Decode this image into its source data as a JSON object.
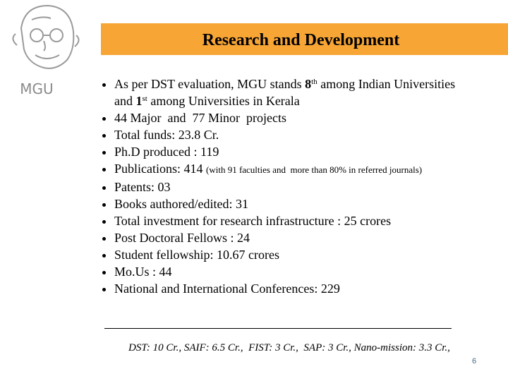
{
  "logo": {
    "label": "MGU"
  },
  "header": {
    "title": "Research and Development"
  },
  "bullets": [
    {
      "segments": [
        "As per DST evaluation, MGU stands",
        "8",
        "th",
        "among Indian Universities",
        "and",
        "1",
        "st",
        "among Universities in Kerala"
      ]
    },
    {
      "text": "44 Major  and  77 Minor  projects"
    },
    {
      "text": "Total funds: 23.8 Cr."
    },
    {
      "text": "Ph.D produced : 119"
    },
    {
      "text": "Publications: 414",
      "note": "(with 91 faculties and  more than 80% in referred journals)"
    },
    {
      "text": "Patents: 03"
    },
    {
      "text": "Books authored/edited: 31"
    },
    {
      "text": "Total investment for research infrastructure : 25 crores"
    },
    {
      "text": "Post Doctoral Fellows : 24"
    },
    {
      "text": "Student fellowship: 10.67 crores"
    },
    {
      "text": "Mo.Us : 44"
    },
    {
      "text": "National and International Conferences: 229"
    }
  ],
  "footer": {
    "note": "DST: 10 Cr., SAIF: 6.5 Cr.,  FIST: 3 Cr.,  SAP: 3 Cr., Nano-mission: 3.3 Cr.,",
    "page_number": "6"
  }
}
